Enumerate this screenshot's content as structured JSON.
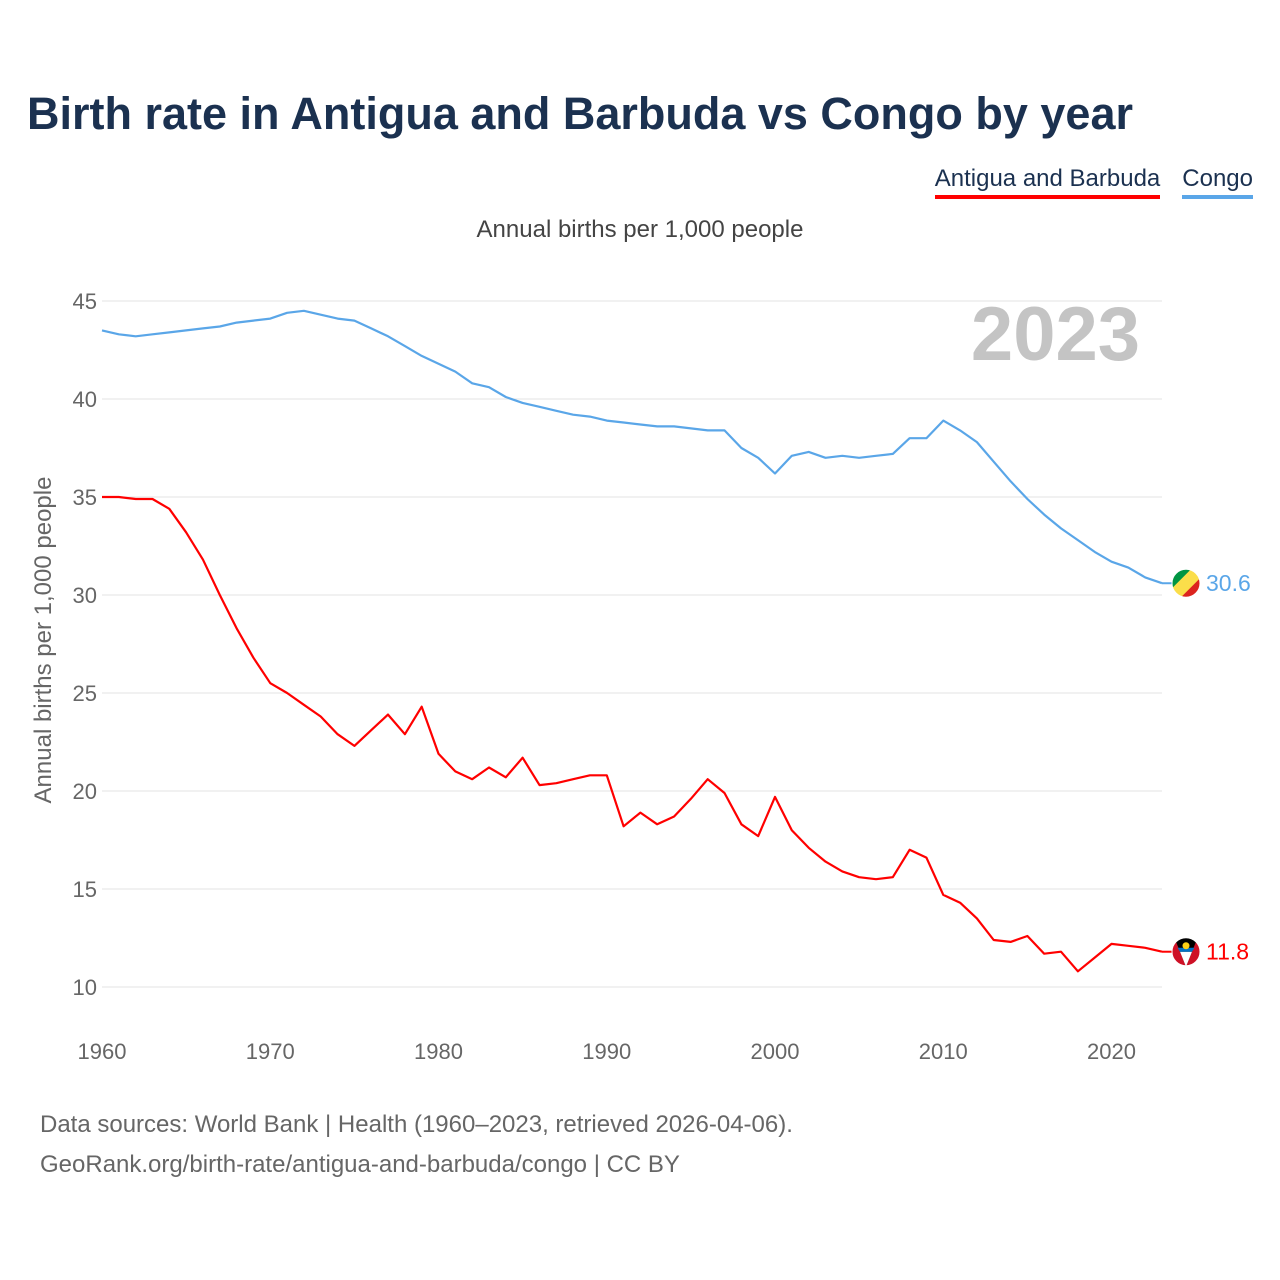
{
  "title": "Birth rate in Antigua and Barbuda vs Congo by year",
  "legend": [
    {
      "label": "Antigua and Barbuda",
      "color": "#ff0000"
    },
    {
      "label": "Congo",
      "color": "#5aa6e8"
    }
  ],
  "footer": {
    "line1": "Data sources: World Bank | Health (1960–2023, retrieved 2026-04-06).",
    "line2": "GeoRank.org/birth-rate/antigua-and-barbuda/congo | CC BY"
  },
  "chart_data": {
    "type": "line",
    "title": "Birth rate in Antigua and Barbuda vs Congo by year",
    "subtitle": "Annual births per 1,000 people",
    "xlabel": "",
    "ylabel": "Annual births per 1,000 people",
    "year_label": "2023",
    "xlim": [
      1960,
      2023
    ],
    "ylim": [
      10,
      45
    ],
    "y_ticks": [
      10,
      15,
      20,
      25,
      30,
      35,
      40,
      45
    ],
    "x_ticks": [
      1960,
      1970,
      1980,
      1990,
      2000,
      2010,
      2020
    ],
    "grid": true,
    "x": [
      1960,
      1961,
      1962,
      1963,
      1964,
      1965,
      1966,
      1967,
      1968,
      1969,
      1970,
      1971,
      1972,
      1973,
      1974,
      1975,
      1976,
      1977,
      1978,
      1979,
      1980,
      1981,
      1982,
      1983,
      1984,
      1985,
      1986,
      1987,
      1988,
      1989,
      1990,
      1991,
      1992,
      1993,
      1994,
      1995,
      1996,
      1997,
      1998,
      1999,
      2000,
      2001,
      2002,
      2003,
      2004,
      2005,
      2006,
      2007,
      2008,
      2009,
      2010,
      2011,
      2012,
      2013,
      2014,
      2015,
      2016,
      2017,
      2018,
      2019,
      2020,
      2021,
      2022,
      2023
    ],
    "series": [
      {
        "name": "Antigua and Barbuda",
        "color": "#ff0000",
        "end_label": "11.8",
        "flag": "antigua-and-barbuda-flag-icon",
        "values": [
          35.0,
          35.0,
          34.9,
          34.9,
          34.4,
          33.2,
          31.8,
          30.0,
          28.3,
          26.8,
          25.5,
          25.0,
          24.4,
          23.8,
          22.9,
          22.3,
          23.1,
          23.9,
          22.9,
          24.3,
          21.9,
          21.0,
          20.6,
          21.2,
          20.7,
          21.7,
          20.3,
          20.4,
          20.6,
          20.8,
          20.8,
          18.2,
          18.9,
          18.3,
          18.7,
          19.6,
          20.6,
          19.9,
          18.3,
          17.7,
          19.7,
          18.0,
          17.1,
          16.4,
          15.9,
          15.6,
          15.5,
          15.6,
          17.0,
          16.6,
          14.7,
          14.3,
          13.5,
          12.4,
          12.3,
          12.6,
          11.7,
          11.8,
          10.8,
          11.5,
          12.2,
          12.1,
          12.0,
          11.8
        ]
      },
      {
        "name": "Congo",
        "color": "#5aa6e8",
        "end_label": "30.6",
        "flag": "congo-flag-icon",
        "values": [
          43.5,
          43.3,
          43.2,
          43.3,
          43.4,
          43.5,
          43.6,
          43.7,
          43.9,
          44.0,
          44.1,
          44.4,
          44.5,
          44.3,
          44.1,
          44.0,
          43.6,
          43.2,
          42.7,
          42.2,
          41.8,
          41.4,
          40.8,
          40.6,
          40.1,
          39.8,
          39.6,
          39.4,
          39.2,
          39.1,
          38.9,
          38.8,
          38.7,
          38.6,
          38.6,
          38.5,
          38.4,
          38.4,
          37.5,
          37.0,
          36.2,
          37.1,
          37.3,
          37.0,
          37.1,
          37.0,
          37.1,
          37.2,
          38.0,
          38.0,
          38.9,
          38.4,
          37.8,
          36.8,
          35.8,
          34.9,
          34.1,
          33.4,
          32.8,
          32.2,
          31.7,
          31.4,
          30.9,
          30.6
        ]
      }
    ]
  }
}
